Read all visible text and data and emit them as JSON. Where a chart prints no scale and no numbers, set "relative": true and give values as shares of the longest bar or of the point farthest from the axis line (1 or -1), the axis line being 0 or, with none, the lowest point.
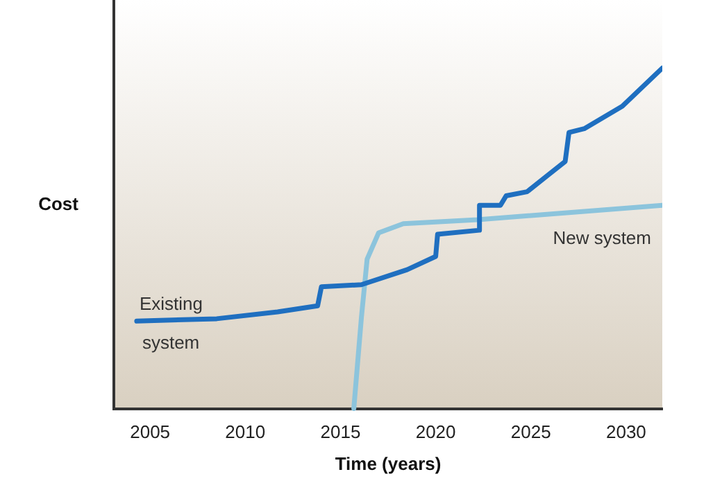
{
  "chart_data": {
    "type": "line",
    "relative": true,
    "xlabel": "Time (years)",
    "ylabel": "Cost",
    "xlim": [
      2003.1,
      2031.9
    ],
    "xticks": [
      2005,
      2010,
      2015,
      2020,
      2025,
      2030
    ],
    "grid": false,
    "legend": false,
    "marker": "none",
    "line_style": "solid",
    "series": [
      {
        "name": "Existing system",
        "color": "#1f6fc0",
        "x": [
          2004.3,
          2008.5,
          2011.7,
          2013.8,
          2014.0,
          2016.1,
          2018.5,
          2020.0,
          2020.1,
          2022.3,
          2022.3,
          2023.4,
          2023.7,
          2024.8,
          2026.8,
          2027.0,
          2027.8,
          2029.8,
          2031.9
        ],
        "values": [
          0.257,
          0.264,
          0.284,
          0.302,
          0.358,
          0.364,
          0.408,
          0.447,
          0.512,
          0.524,
          0.597,
          0.597,
          0.625,
          0.637,
          0.726,
          0.811,
          0.822,
          0.888,
          1.0
        ]
      },
      {
        "name": "New system",
        "color": "#8cc4dc",
        "x": [
          2015.7,
          2016.1,
          2016.4,
          2017.0,
          2018.3,
          2022.2,
          2031.9
        ],
        "values": [
          0,
          0.268,
          0.439,
          0.516,
          0.543,
          0.555,
          0.597
        ]
      }
    ]
  }
}
